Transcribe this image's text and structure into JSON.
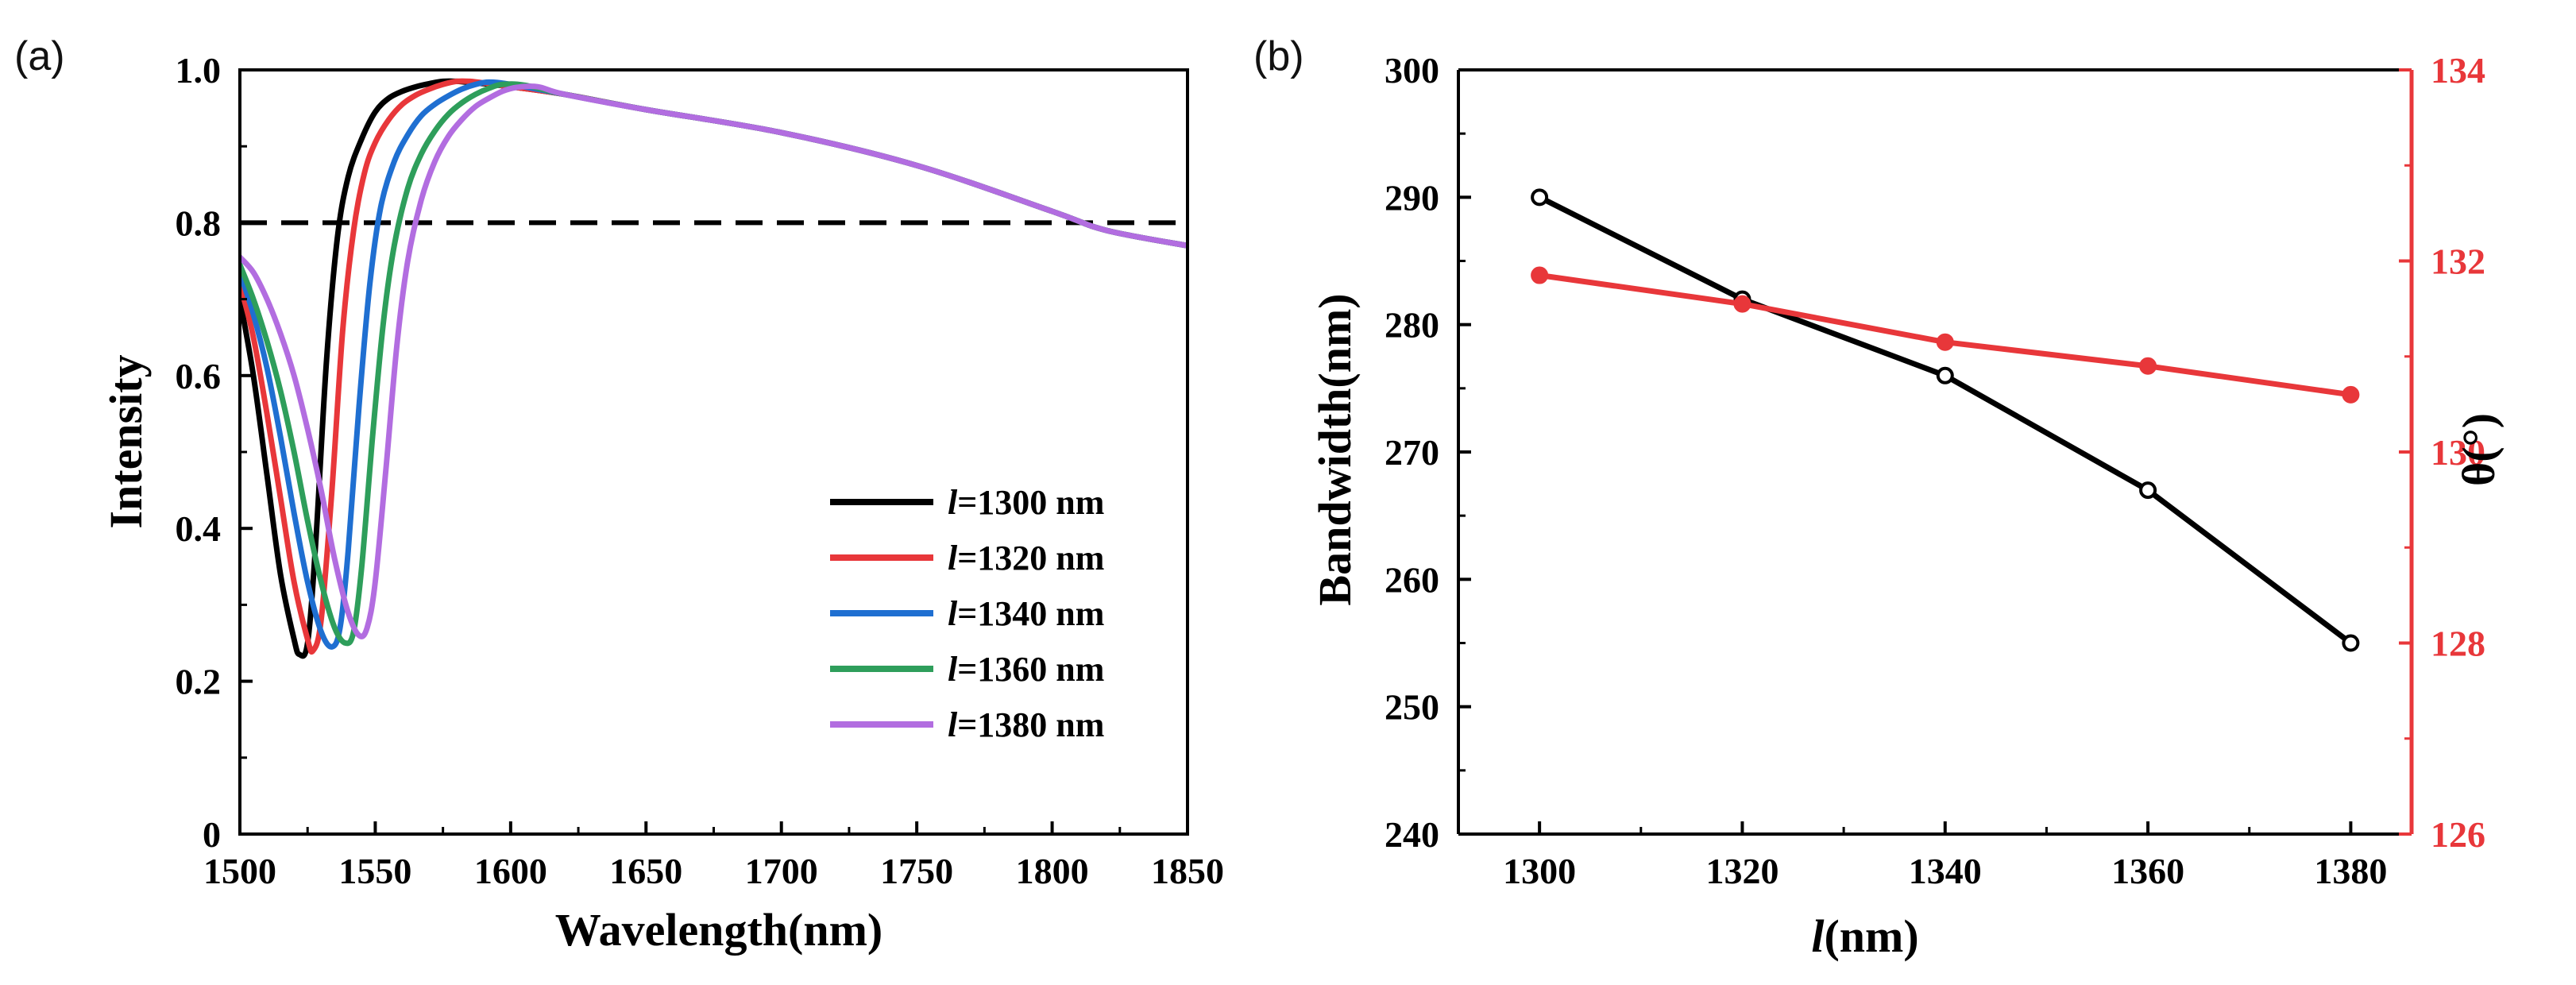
{
  "chart_data": [
    {
      "panel_label": "(a)",
      "type": "line",
      "xlabel": "Wavelength(nm)",
      "ylabel": "Intensity",
      "xlim": [
        1500,
        1850
      ],
      "ylim": [
        0,
        1.0
      ],
      "xticks": [
        1500,
        1550,
        1600,
        1650,
        1700,
        1750,
        1800,
        1850
      ],
      "xtick_labels": [
        "1500",
        "1550",
        "1600",
        "1650",
        "1700",
        "1750",
        "1800",
        "1850"
      ],
      "yticks": [
        0,
        0.2,
        0.4,
        0.6,
        0.8,
        1.0
      ],
      "ytick_labels": [
        "0",
        "0.2",
        "0.4",
        "0.6",
        "0.8",
        "1.0"
      ],
      "reference_line": {
        "y": 0.8,
        "style": "dashed",
        "color": "#000000"
      },
      "legend_position": "lower-right",
      "series": [
        {
          "legend_prefix": "l",
          "legend_suffix": "=1300 nm",
          "color": "#000000",
          "x": [
            1500,
            1505,
            1510,
            1515,
            1520,
            1522,
            1525,
            1528,
            1532,
            1536,
            1540,
            1545,
            1550,
            1555,
            1560,
            1565,
            1570,
            1575,
            1580,
            1590,
            1600,
            1620,
            1650,
            1700,
            1750,
            1800,
            1820,
            1850
          ],
          "y": [
            0.7,
            0.6,
            0.47,
            0.34,
            0.255,
            0.235,
            0.25,
            0.38,
            0.62,
            0.78,
            0.86,
            0.91,
            0.945,
            0.963,
            0.972,
            0.978,
            0.982,
            0.985,
            0.985,
            0.982,
            0.978,
            0.968,
            0.948,
            0.918,
            0.875,
            0.815,
            0.79,
            0.77
          ]
        },
        {
          "legend_prefix": "l",
          "legend_suffix": "=1320 nm",
          "color": "#e8373a",
          "x": [
            1500,
            1505,
            1510,
            1515,
            1520,
            1525,
            1527,
            1530,
            1534,
            1538,
            1542,
            1546,
            1550,
            1555,
            1560,
            1565,
            1570,
            1575,
            1580,
            1585,
            1590,
            1600,
            1620,
            1650,
            1700,
            1750,
            1800,
            1820,
            1850
          ],
          "y": [
            0.72,
            0.65,
            0.55,
            0.44,
            0.33,
            0.255,
            0.24,
            0.28,
            0.45,
            0.66,
            0.79,
            0.865,
            0.905,
            0.935,
            0.955,
            0.967,
            0.975,
            0.981,
            0.985,
            0.985,
            0.983,
            0.978,
            0.968,
            0.948,
            0.918,
            0.875,
            0.815,
            0.79,
            0.77
          ]
        },
        {
          "legend_prefix": "l",
          "legend_suffix": "=1340 nm",
          "color": "#1f6fd1",
          "x": [
            1500,
            1505,
            1510,
            1515,
            1520,
            1525,
            1530,
            1534,
            1537,
            1540,
            1544,
            1548,
            1552,
            1557,
            1562,
            1567,
            1572,
            1577,
            1582,
            1587,
            1592,
            1600,
            1620,
            1650,
            1700,
            1750,
            1800,
            1820,
            1850
          ],
          "y": [
            0.735,
            0.68,
            0.61,
            0.52,
            0.42,
            0.33,
            0.265,
            0.245,
            0.27,
            0.37,
            0.56,
            0.72,
            0.82,
            0.88,
            0.915,
            0.94,
            0.955,
            0.966,
            0.975,
            0.981,
            0.984,
            0.981,
            0.968,
            0.948,
            0.918,
            0.875,
            0.815,
            0.79,
            0.77
          ]
        },
        {
          "legend_prefix": "l",
          "legend_suffix": "=1360 nm",
          "color": "#2e9e5b",
          "x": [
            1500,
            1505,
            1510,
            1515,
            1520,
            1525,
            1530,
            1535,
            1539,
            1542,
            1545,
            1549,
            1553,
            1557,
            1562,
            1567,
            1572,
            1577,
            1582,
            1587,
            1592,
            1597,
            1605,
            1620,
            1650,
            1700,
            1750,
            1800,
            1820,
            1850
          ],
          "y": [
            0.745,
            0.7,
            0.645,
            0.58,
            0.5,
            0.41,
            0.33,
            0.27,
            0.25,
            0.265,
            0.35,
            0.52,
            0.67,
            0.77,
            0.845,
            0.89,
            0.92,
            0.942,
            0.957,
            0.968,
            0.976,
            0.981,
            0.98,
            0.968,
            0.948,
            0.918,
            0.875,
            0.815,
            0.79,
            0.77
          ]
        },
        {
          "legend_prefix": "l",
          "legend_suffix": "=1380 nm",
          "color": "#b26de0",
          "x": [
            1500,
            1505,
            1510,
            1515,
            1520,
            1525,
            1530,
            1535,
            1540,
            1544,
            1547,
            1550,
            1554,
            1558,
            1562,
            1567,
            1572,
            1577,
            1582,
            1587,
            1592,
            1597,
            1602,
            1610,
            1620,
            1650,
            1700,
            1750,
            1800,
            1820,
            1850
          ],
          "y": [
            0.755,
            0.735,
            0.7,
            0.655,
            0.6,
            0.53,
            0.45,
            0.36,
            0.29,
            0.26,
            0.27,
            0.33,
            0.48,
            0.64,
            0.75,
            0.83,
            0.88,
            0.913,
            0.935,
            0.952,
            0.963,
            0.972,
            0.977,
            0.978,
            0.968,
            0.948,
            0.918,
            0.875,
            0.815,
            0.79,
            0.77
          ]
        }
      ]
    },
    {
      "panel_label": "(b)",
      "type": "line",
      "xlabel_prefix": "l",
      "xlabel_suffix": "(nm)",
      "ylabel": "Bandwidth(nm)",
      "y2label": "θ(°)",
      "xlim": [
        1292,
        1386
      ],
      "ylim": [
        240,
        300
      ],
      "y2lim": [
        126,
        134
      ],
      "xticks": [
        1300,
        1320,
        1340,
        1360,
        1380
      ],
      "xtick_labels": [
        "1300",
        "1320",
        "1340",
        "1360",
        "1380"
      ],
      "yticks": [
        240,
        250,
        260,
        270,
        280,
        290,
        300
      ],
      "ytick_labels": [
        "240",
        "250",
        "260",
        "270",
        "280",
        "290",
        "300"
      ],
      "y2ticks": [
        126,
        128,
        130,
        132,
        134
      ],
      "y2tick_labels": [
        "126",
        "128",
        "130",
        "132",
        "134"
      ],
      "accent_color": "#e8373a",
      "series": [
        {
          "name": "Bandwidth",
          "axis": "left",
          "color": "#000000",
          "x": [
            1300,
            1320,
            1340,
            1360,
            1380
          ],
          "y": [
            290,
            282,
            276,
            267,
            255
          ]
        },
        {
          "name": "θ",
          "axis": "right",
          "color": "#e8373a",
          "x": [
            1300,
            1320,
            1340,
            1360,
            1380
          ],
          "y": [
            131.85,
            131.55,
            131.15,
            130.9,
            130.6
          ]
        }
      ]
    }
  ]
}
